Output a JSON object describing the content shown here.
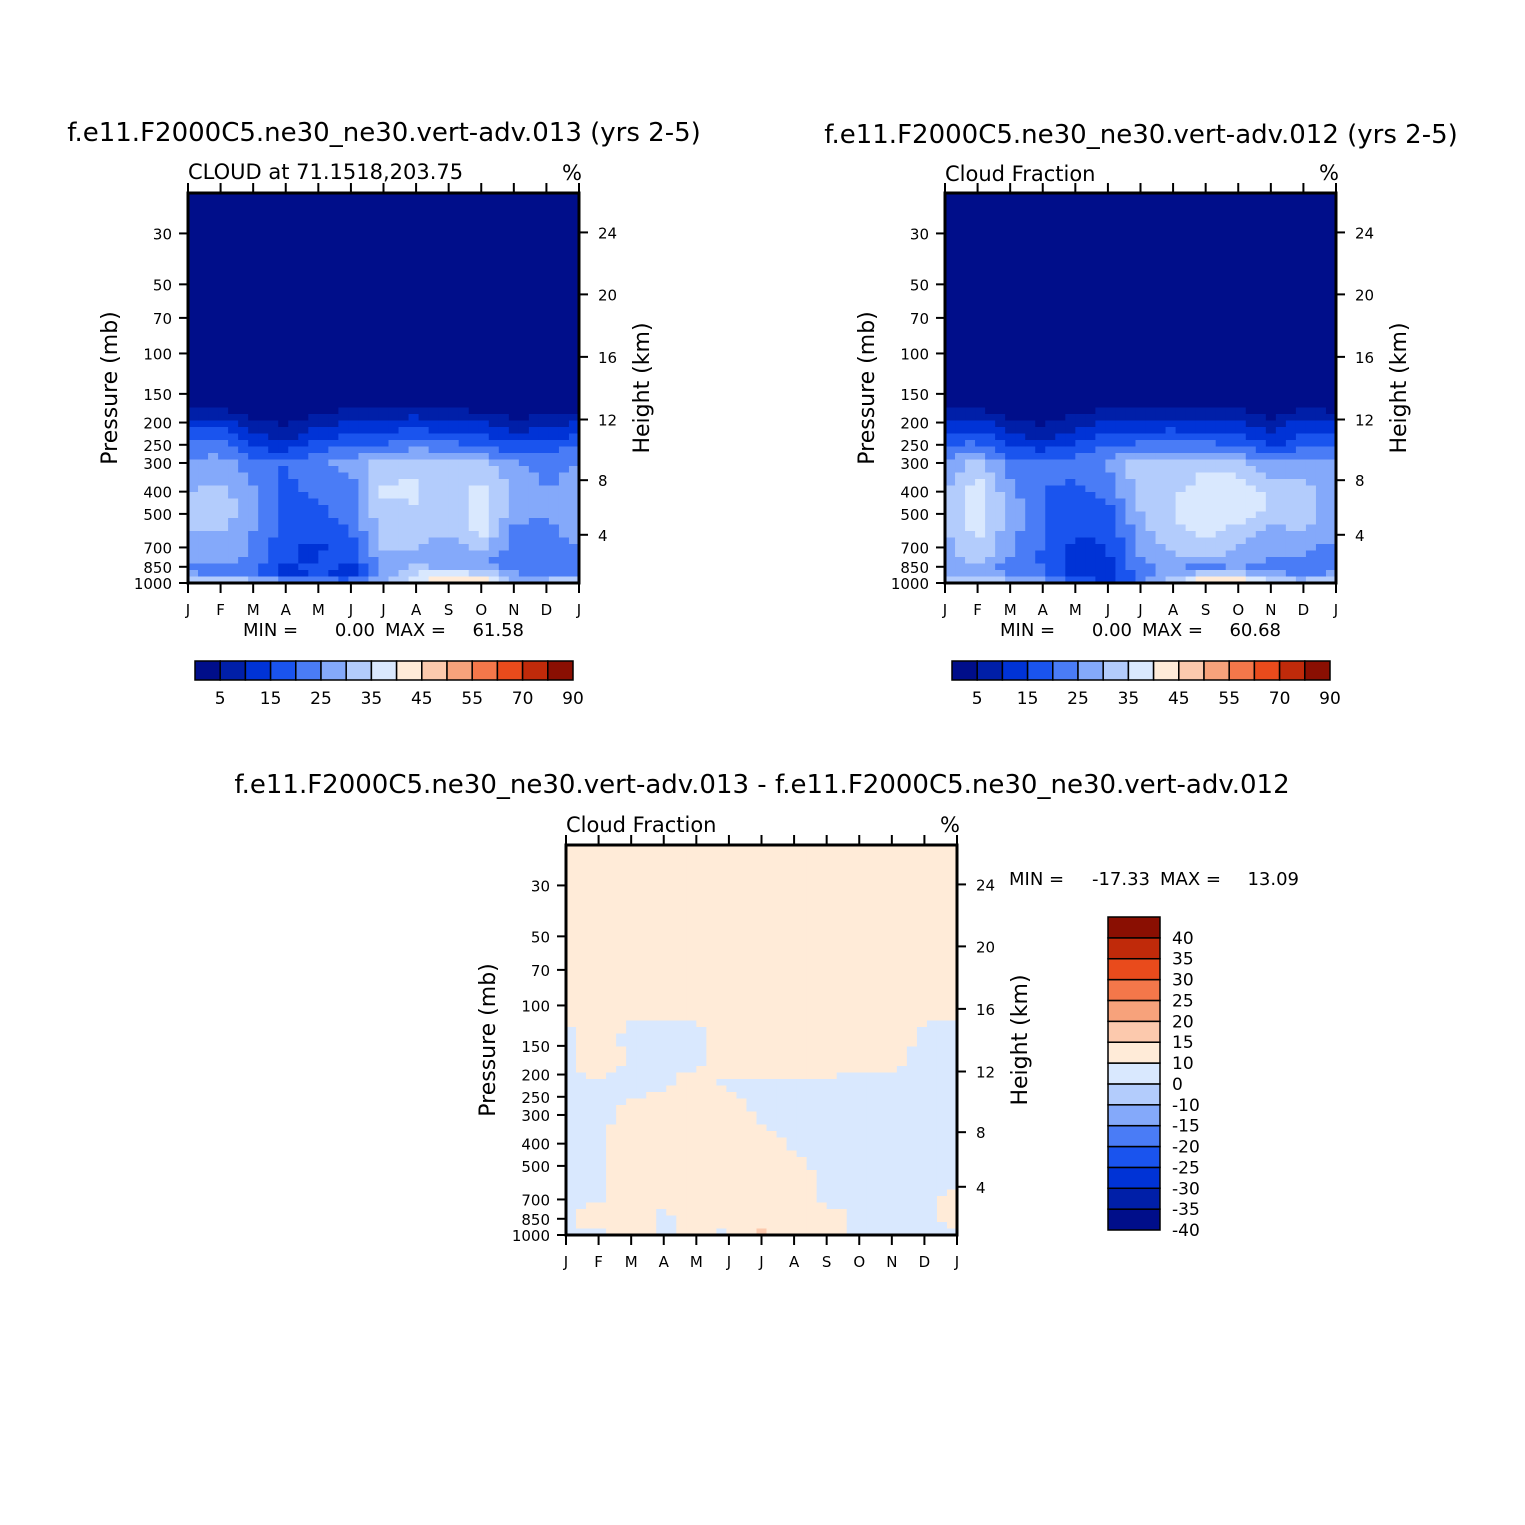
{
  "chart_data": [
    {
      "type": "heatmap",
      "title": "f.e11.F2000C5.ne30_ne30.vert-adv.013 (yrs 2-5)",
      "subtitle": "CLOUD at 71.1518,203.75",
      "units": "%",
      "xlabel": "",
      "ylabel": "Pressure (mb)",
      "ylabel_right": "Height (km)",
      "x_tick_labels": [
        "J",
        "F",
        "M",
        "A",
        "M",
        "J",
        "J",
        "A",
        "S",
        "O",
        "N",
        "D",
        "J"
      ],
      "y_ticks": [
        30,
        50,
        70,
        100,
        150,
        200,
        250,
        300,
        400,
        500,
        700,
        850,
        1000
      ],
      "y_right_ticks": [
        24,
        20,
        16,
        12,
        8,
        4
      ],
      "ylim": [
        1000,
        20
      ],
      "log_y": true,
      "min_label": "MIN =",
      "min_value": "0.00",
      "max_label": "MAX =",
      "max_value": "61.58",
      "colorbar": {
        "orientation": "horizontal",
        "labels": [
          "5",
          "15",
          "25",
          "35",
          "45",
          "55",
          "70",
          "90"
        ],
        "colors": [
          "#000e8a",
          "#001fa8",
          "#0033d6",
          "#1a54ee",
          "#4a7cf6",
          "#84a9fa",
          "#b3ccfc",
          "#d9e8fe",
          "#ffebd8",
          "#fcc9ad",
          "#f7a27b",
          "#f4774a",
          "#e94b1c",
          "#c02a0a",
          "#8a0f02"
        ]
      },
      "levels": [
        5,
        10,
        15,
        20,
        25,
        30,
        35,
        40,
        45,
        50,
        55,
        60,
        70,
        80,
        90
      ],
      "grid_months": [
        "J",
        "F",
        "M",
        "A",
        "M",
        "J",
        "J",
        "A",
        "S",
        "O",
        "N",
        "D",
        "J"
      ],
      "grid_pressures": [
        20,
        100,
        170,
        200,
        250,
        300,
        400,
        500,
        600,
        700,
        800,
        850,
        925,
        970,
        1000
      ],
      "values": [
        [
          0,
          0,
          0,
          0,
          0,
          0,
          0,
          0,
          0,
          0,
          0,
          0,
          0
        ],
        [
          0,
          0,
          0,
          0,
          0,
          0,
          0,
          0,
          0,
          0,
          0,
          0,
          0
        ],
        [
          3,
          3,
          1,
          1,
          3,
          4,
          4,
          5,
          4,
          3,
          1,
          3,
          3
        ],
        [
          12,
          13,
          6,
          4,
          8,
          10,
          11,
          13,
          10,
          10,
          6,
          8,
          10
        ],
        [
          22,
          23,
          14,
          12,
          17,
          20,
          20,
          23,
          21,
          20,
          16,
          17,
          20
        ],
        [
          26,
          27,
          23,
          20,
          24,
          27,
          32,
          34,
          31,
          31,
          26,
          23,
          25
        ],
        [
          30,
          32,
          26,
          18,
          22,
          22,
          36,
          36,
          31,
          38,
          30,
          25,
          28
        ],
        [
          32,
          33,
          28,
          17,
          18,
          24,
          33,
          34,
          30,
          38,
          27,
          25,
          28
        ],
        [
          30,
          30,
          24,
          18,
          16,
          20,
          32,
          32,
          30,
          37,
          23,
          24,
          27
        ],
        [
          27,
          28,
          24,
          16,
          14,
          18,
          30,
          30,
          28,
          32,
          23,
          22,
          25
        ],
        [
          26,
          27,
          24,
          15,
          15,
          18,
          27,
          28,
          26,
          26,
          21,
          22,
          25
        ],
        [
          24,
          25,
          22,
          14,
          17,
          14,
          26,
          32,
          28,
          28,
          22,
          21,
          24
        ],
        [
          26,
          24,
          22,
          14,
          15,
          12,
          28,
          36,
          40,
          36,
          26,
          23,
          25
        ],
        [
          32,
          33,
          30,
          24,
          21,
          20,
          28,
          36,
          44,
          44,
          30,
          30,
          32
        ],
        [
          38,
          36,
          34,
          30,
          30,
          32,
          34,
          40,
          44,
          44,
          36,
          36,
          36
        ]
      ]
    },
    {
      "type": "heatmap",
      "title": "f.e11.F2000C5.ne30_ne30.vert-adv.012 (yrs 2-5)",
      "subtitle": "Cloud Fraction",
      "units": "%",
      "xlabel": "",
      "ylabel": "Pressure (mb)",
      "ylabel_right": "Height (km)",
      "x_tick_labels": [
        "J",
        "F",
        "M",
        "A",
        "M",
        "J",
        "J",
        "A",
        "S",
        "O",
        "N",
        "D",
        "J"
      ],
      "y_ticks": [
        30,
        50,
        70,
        100,
        150,
        200,
        250,
        300,
        400,
        500,
        700,
        850,
        1000
      ],
      "y_right_ticks": [
        24,
        20,
        16,
        12,
        8,
        4
      ],
      "ylim": [
        1000,
        20
      ],
      "log_y": true,
      "min_label": "MIN =",
      "min_value": "0.00",
      "max_label": "MAX =",
      "max_value": "60.68",
      "colorbar": {
        "orientation": "horizontal",
        "labels": [
          "5",
          "15",
          "25",
          "35",
          "45",
          "55",
          "70",
          "90"
        ],
        "colors": [
          "#000e8a",
          "#001fa8",
          "#0033d6",
          "#1a54ee",
          "#4a7cf6",
          "#84a9fa",
          "#b3ccfc",
          "#d9e8fe",
          "#ffebd8",
          "#fcc9ad",
          "#f7a27b",
          "#f4774a",
          "#e94b1c",
          "#c02a0a",
          "#8a0f02"
        ]
      },
      "levels": [
        5,
        10,
        15,
        20,
        25,
        30,
        35,
        40,
        45,
        50,
        55,
        60,
        70,
        80,
        90
      ],
      "grid_months": [
        "J",
        "F",
        "M",
        "A",
        "M",
        "J",
        "J",
        "A",
        "S",
        "O",
        "N",
        "D",
        "J"
      ],
      "grid_pressures": [
        20,
        100,
        170,
        200,
        250,
        300,
        400,
        500,
        600,
        700,
        800,
        850,
        925,
        970,
        1000
      ],
      "values": [
        [
          0,
          0,
          0,
          0,
          0,
          0,
          0,
          0,
          0,
          0,
          0,
          0,
          0
        ],
        [
          0,
          0,
          0,
          0,
          0,
          0,
          0,
          0,
          0,
          0,
          0,
          0,
          0
        ],
        [
          3,
          3,
          1,
          1,
          3,
          4,
          4,
          5,
          4,
          4,
          1,
          4,
          3
        ],
        [
          12,
          12,
          7,
          4,
          8,
          10,
          11,
          12,
          10,
          11,
          6,
          12,
          10
        ],
        [
          20,
          21,
          14,
          12,
          16,
          20,
          21,
          22,
          21,
          20,
          14,
          18,
          20
        ],
        [
          25,
          32,
          23,
          22,
          22,
          26,
          33,
          30,
          34,
          32,
          26,
          28,
          25
        ],
        [
          30,
          38,
          27,
          20,
          18,
          22,
          32,
          34,
          38,
          40,
          34,
          32,
          28
        ],
        [
          30,
          38,
          28,
          20,
          16,
          18,
          30,
          35,
          40,
          38,
          34,
          32,
          28
        ],
        [
          30,
          36,
          27,
          20,
          15,
          16,
          28,
          34,
          36,
          32,
          28,
          30,
          26
        ],
        [
          28,
          34,
          26,
          20,
          14,
          15,
          26,
          32,
          34,
          30,
          26,
          26,
          24
        ],
        [
          27,
          32,
          24,
          18,
          14,
          14,
          24,
          28,
          30,
          28,
          24,
          24,
          24
        ],
        [
          26,
          30,
          22,
          20,
          14,
          12,
          24,
          26,
          24,
          26,
          22,
          22,
          24
        ],
        [
          28,
          30,
          24,
          22,
          12,
          10,
          22,
          28,
          34,
          34,
          28,
          24,
          26
        ],
        [
          32,
          34,
          30,
          26,
          18,
          14,
          22,
          32,
          44,
          44,
          32,
          30,
          32
        ],
        [
          38,
          40,
          34,
          30,
          26,
          26,
          30,
          36,
          44,
          44,
          36,
          34,
          36
        ]
      ]
    },
    {
      "type": "heatmap",
      "title": "f.e11.F2000C5.ne30_ne30.vert-adv.013 - f.e11.F2000C5.ne30_ne30.vert-adv.012",
      "subtitle": "Cloud Fraction",
      "units": "%",
      "xlabel": "",
      "ylabel": "Pressure (mb)",
      "ylabel_right": "Height (km)",
      "x_tick_labels": [
        "J",
        "F",
        "M",
        "A",
        "M",
        "J",
        "J",
        "A",
        "S",
        "O",
        "N",
        "D",
        "J"
      ],
      "y_ticks": [
        30,
        50,
        70,
        100,
        150,
        200,
        250,
        300,
        400,
        500,
        700,
        850,
        1000
      ],
      "y_right_ticks": [
        24,
        20,
        16,
        12,
        8,
        4
      ],
      "ylim": [
        1000,
        20
      ],
      "log_y": true,
      "min_label": "MIN =",
      "min_value": "-17.33",
      "max_label": "MAX =",
      "max_value": "13.09",
      "colorbar": {
        "orientation": "vertical",
        "labels": [
          "40",
          "35",
          "30",
          "25",
          "20",
          "15",
          "10",
          "0",
          "-10",
          "-15",
          "-20",
          "-25",
          "-30",
          "-35",
          "-40"
        ],
        "colors": [
          "#000e8a",
          "#001fa8",
          "#0033d6",
          "#1a54ee",
          "#4a7cf6",
          "#84a9fa",
          "#b3ccfc",
          "#d9e8fe",
          "#ffebd8",
          "#fcc9ad",
          "#f7a27b",
          "#f4774a",
          "#e94b1c",
          "#c02a0a",
          "#8a0f02"
        ]
      },
      "levels": [
        -40,
        -35,
        -30,
        -25,
        -20,
        -15,
        -10,
        0,
        10,
        15,
        20,
        25,
        30,
        35,
        40
      ],
      "grid_months": [
        "J",
        "F",
        "M",
        "A",
        "M",
        "J",
        "J",
        "A",
        "S",
        "O",
        "N",
        "D",
        "J"
      ],
      "grid_pressures": [
        20,
        95,
        140,
        170,
        220,
        300,
        400,
        500,
        600,
        700,
        800,
        850,
        925,
        970,
        1000
      ],
      "values": [
        [
          1,
          1,
          1,
          1,
          1,
          1,
          1,
          1,
          1,
          1,
          1,
          1,
          1
        ],
        [
          1,
          1,
          1,
          1,
          1,
          1,
          1,
          1,
          1,
          1,
          1,
          1,
          1
        ],
        [
          -1,
          2,
          -1,
          -1,
          -1,
          2,
          2,
          2,
          2,
          2,
          2,
          -1,
          -1
        ],
        [
          -1,
          3,
          -1,
          -1,
          -1,
          2,
          2,
          2,
          2,
          1,
          1,
          -1,
          -1
        ],
        [
          -1,
          -1,
          -1,
          -1,
          2,
          -1,
          -1,
          -1,
          -1,
          -1,
          -1,
          -1,
          -1
        ],
        [
          -1,
          -1,
          1,
          3,
          2,
          3,
          -1,
          -1,
          -1,
          -1,
          -1,
          -1,
          -1
        ],
        [
          -1,
          -1,
          3,
          3,
          3,
          3,
          2,
          -1,
          -1,
          -1,
          -1,
          -11,
          -1
        ],
        [
          -1,
          -1,
          3,
          3,
          3,
          3,
          2,
          1,
          -1,
          -1,
          -1,
          -8,
          -1
        ],
        [
          -1,
          -1,
          3,
          3,
          2,
          3,
          2,
          2,
          -1,
          -1,
          -1,
          -1,
          -1
        ],
        [
          -1,
          -1,
          3,
          3,
          2,
          3,
          2,
          2,
          -1,
          -1,
          -1,
          -1,
          2
        ],
        [
          -1,
          2,
          3,
          -1,
          3,
          3,
          2,
          2,
          1,
          -1,
          -1,
          -1,
          2
        ],
        [
          -1,
          2,
          3,
          -1,
          2,
          3,
          3,
          3,
          2,
          -1,
          -1,
          -1,
          2
        ],
        [
          -1,
          2,
          3,
          -1,
          2,
          2,
          3,
          13,
          3,
          -1,
          -1,
          -11,
          2
        ],
        [
          -1,
          -1,
          3,
          -1,
          2,
          -1,
          12,
          3,
          2,
          -1,
          -1,
          -1,
          -1
        ],
        [
          1,
          -17,
          2,
          -1,
          -1,
          1,
          -1,
          -1,
          -1,
          -1,
          -1,
          -1,
          1
        ]
      ]
    }
  ]
}
